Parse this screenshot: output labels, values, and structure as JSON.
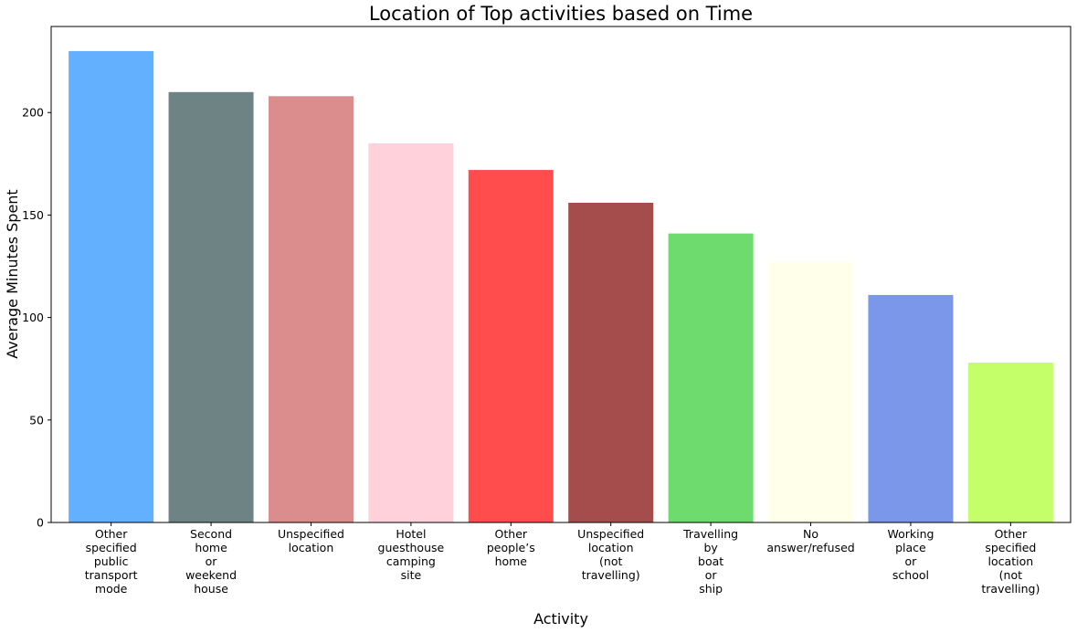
{
  "chart_data": {
    "type": "bar",
    "title": "Location of Top activities based on Time",
    "xlabel": "Activity",
    "ylabel": "Average Minutes Spent",
    "ylim": [
      0,
      242
    ],
    "yticks": [
      0,
      50,
      100,
      150,
      200
    ],
    "grid": false,
    "legend": "none",
    "categories": [
      "Other specified public transport mode",
      "Second home or weekend house",
      "Unspecified location",
      "Hotel guesthouse camping site",
      "Other people’s home",
      "Unspecified location (not travelling)",
      "Travelling by boat or ship",
      "No answer/refused",
      "Working place or school",
      "Other specified location (not travelling)"
    ],
    "category_label_lines": [
      [
        "Other",
        "specified",
        "public",
        "transport",
        "mode"
      ],
      [
        "Second",
        "home",
        "or",
        "weekend",
        "house"
      ],
      [
        "Unspecified",
        "location"
      ],
      [
        "Hotel",
        "guesthouse",
        "camping",
        "site"
      ],
      [
        "Other",
        "people’s",
        "home"
      ],
      [
        "Unspecified",
        "location",
        "(not",
        "travelling)"
      ],
      [
        "Travelling",
        "by",
        "boat",
        "or",
        "ship"
      ],
      [
        "No",
        "answer/refused"
      ],
      [
        "Working",
        "place",
        "or",
        "school"
      ],
      [
        "Other",
        "specified",
        "location",
        "(not",
        "travelling)"
      ]
    ],
    "values": [
      230,
      210,
      208,
      185,
      172,
      156,
      141,
      127,
      111,
      78
    ],
    "colors": [
      "#62b0ff",
      "#6e8384",
      "#db8d8d",
      "#ffd1db",
      "#ff4c4c",
      "#a54d4d",
      "#6ddb6d",
      "#ffffea",
      "#7a97ea",
      "#c4ff6a"
    ]
  }
}
